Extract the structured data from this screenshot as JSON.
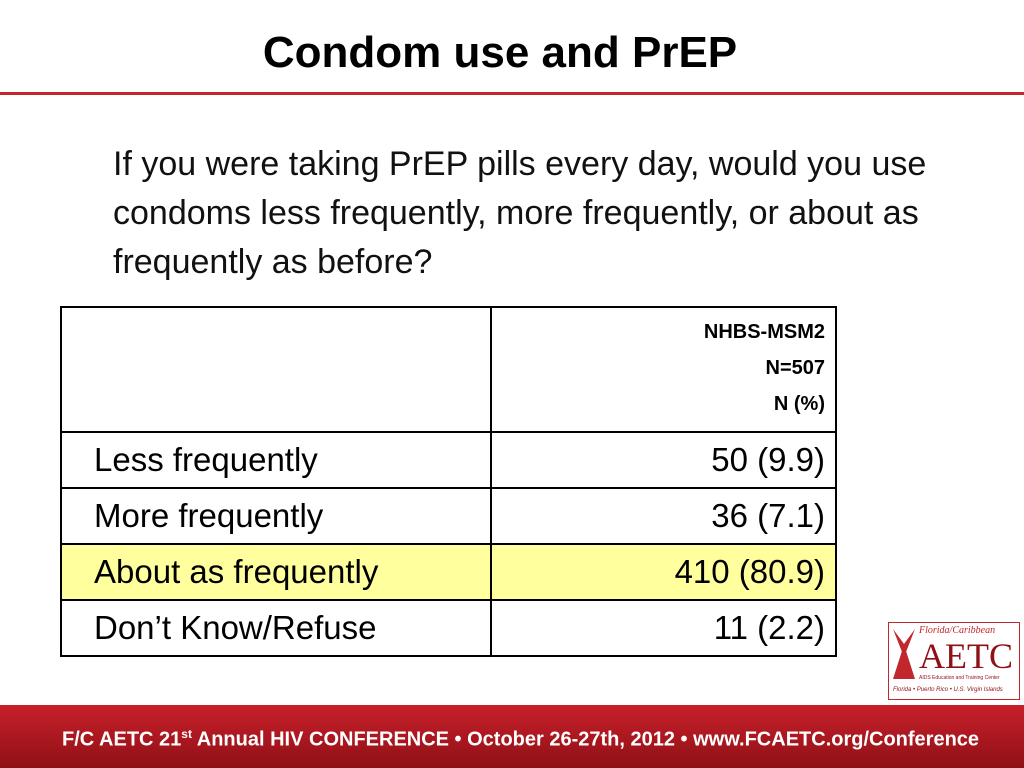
{
  "header": {
    "title": "Condom use and PrEP"
  },
  "question": "If you were taking PrEP pills every day, would you use condoms less frequently, more frequently, or about as frequently as before?",
  "table": {
    "header": [
      "NHBS-MSM2",
      "N=507",
      "N (%)"
    ],
    "rows": [
      [
        "Less frequently",
        "50 (9.9)"
      ],
      [
        "More frequently",
        "36 (7.1)"
      ],
      [
        "About as frequently",
        "410 (80.9)"
      ],
      [
        "Don’t Know/Refuse",
        "11 (2.2)"
      ]
    ]
  },
  "footer": {
    "parts": [
      "F/C AETC 21",
      "st",
      " Annual HIV CONFERENCE • October 26-27th, 2012 • www.FCAETC.org/Conference"
    ]
  },
  "logo": {
    "lines": [
      "Florida/Caribbean",
      "AETC",
      "AIDS Education and Training Center",
      "Florida • Puerto Rico • U.S. Virgin Islands"
    ]
  }
}
